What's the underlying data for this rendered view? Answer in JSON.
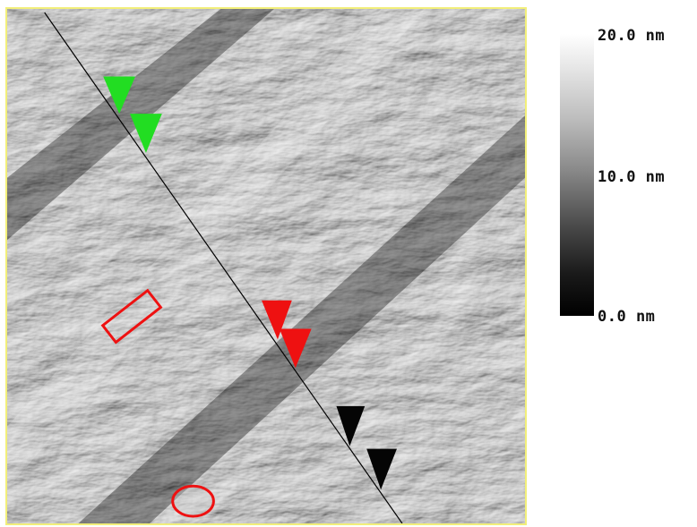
{
  "colorbar": {
    "max_label": "20.0 nm",
    "mid_label": "10.0 nm",
    "min_label": "0.0 nm",
    "colors": {
      "high": "#ffffff",
      "low": "#000000"
    }
  },
  "markers": {
    "section_line_color": "#000000",
    "pair_colors": {
      "pair1": "#22dd22",
      "pair2": "#ee1111",
      "pair3": "#000000"
    },
    "highlight_color": "#ee1111"
  },
  "frame_color": "#f2ef7a"
}
